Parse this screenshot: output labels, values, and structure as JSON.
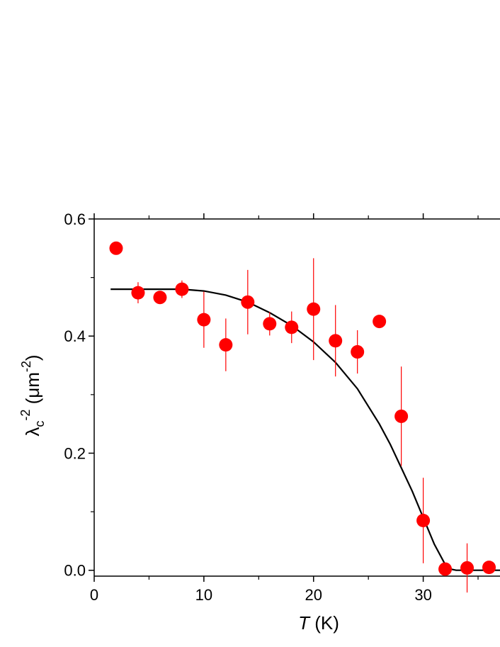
{
  "chart_data": {
    "type": "scatter",
    "title": "",
    "xlabel_italic": "T",
    "xlabel_unit": " (K)",
    "ylabel_symbol": "λ",
    "ylabel_sub": "c",
    "ylabel_sup": "-2",
    "ylabel_unit_prefix": " (μm",
    "ylabel_unit_sup": "-2",
    "ylabel_unit_suffix": ")",
    "xlim": [
      0,
      37
    ],
    "ylim": [
      -0.01,
      0.6
    ],
    "x_ticks": [
      0,
      10,
      20,
      30
    ],
    "x_tick_labels": [
      "0",
      "10",
      "20",
      "30"
    ],
    "y_ticks": [
      0.0,
      0.2,
      0.4,
      0.6
    ],
    "y_tick_labels": [
      "0.0",
      "0.2",
      "0.4",
      "0.6"
    ],
    "grid": false,
    "series": [
      {
        "kind": "points",
        "color": "#ff0000",
        "points": [
          {
            "x": 2,
            "y": 0.55,
            "err": 0
          },
          {
            "x": 4,
            "y": 0.474,
            "err": 0.018
          },
          {
            "x": 6,
            "y": 0.466,
            "err": 0.005
          },
          {
            "x": 8,
            "y": 0.48,
            "err": 0.015
          },
          {
            "x": 10,
            "y": 0.428,
            "err": 0.048
          },
          {
            "x": 12,
            "y": 0.385,
            "err": 0.045
          },
          {
            "x": 14,
            "y": 0.458,
            "err": 0.055
          },
          {
            "x": 16,
            "y": 0.421,
            "err": 0.02
          },
          {
            "x": 18,
            "y": 0.415,
            "err": 0.027
          },
          {
            "x": 20,
            "y": 0.446,
            "err": 0.087
          },
          {
            "x": 22,
            "y": 0.392,
            "err": 0.061
          },
          {
            "x": 24,
            "y": 0.373,
            "err": 0.037
          },
          {
            "x": 26,
            "y": 0.425,
            "err": 0
          },
          {
            "x": 28,
            "y": 0.263,
            "err": 0.085
          },
          {
            "x": 30,
            "y": 0.085,
            "err": 0.073
          },
          {
            "x": 32,
            "y": 0.002,
            "err": 0
          },
          {
            "x": 34,
            "y": 0.004,
            "err": 0.042
          },
          {
            "x": 36,
            "y": 0.005,
            "err": 0
          }
        ]
      },
      {
        "kind": "fit-line",
        "color": "#000000",
        "x": [
          1.5,
          4,
          6,
          8,
          10,
          12,
          14,
          16,
          18,
          20,
          22,
          24,
          26,
          27,
          28,
          29,
          30,
          31,
          32,
          32.5,
          33,
          33.5,
          37
        ],
        "y": [
          0.48,
          0.48,
          0.48,
          0.48,
          0.477,
          0.47,
          0.458,
          0.44,
          0.418,
          0.39,
          0.355,
          0.31,
          0.25,
          0.215,
          0.175,
          0.135,
          0.09,
          0.045,
          0.01,
          0.002,
          0.0,
          0.0,
          0.0
        ]
      }
    ]
  }
}
